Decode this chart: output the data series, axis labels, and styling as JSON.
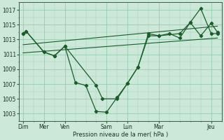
{
  "title": "Pression niveau de la mer( hPa )",
  "bg_color": "#cce8d8",
  "grid_color": "#8ec4a8",
  "line_color": "#1a5c2a",
  "x_ticks_labels": [
    "Dim",
    "Mer",
    "Ven",
    "Sam",
    "Lun",
    "Mar",
    "Jeu"
  ],
  "x_ticks_pos": [
    0,
    1,
    2,
    4,
    5,
    6.5,
    9
  ],
  "yticks": [
    1003,
    1005,
    1007,
    1009,
    1011,
    1013,
    1015,
    1017
  ],
  "ylim": [
    1002.0,
    1018.0
  ],
  "xlim": [
    -0.2,
    9.5
  ],
  "line1_x": [
    0,
    0.15,
    1.0,
    1.5,
    2.0,
    2.5,
    3.0,
    3.5,
    4.0,
    4.5,
    5.0,
    5.5,
    6.0,
    6.5,
    7.0,
    7.5,
    8.0,
    8.5,
    9.0,
    9.3
  ],
  "line1_y": [
    1013.8,
    1014.1,
    1011.3,
    1010.8,
    1012.1,
    1007.2,
    1006.8,
    1003.3,
    1003.2,
    1005.2,
    1007.1,
    1009.3,
    1013.5,
    1013.5,
    1013.8,
    1013.2,
    1015.3,
    1017.2,
    1013.8,
    1013.8
  ],
  "line2_x": [
    0,
    0.15,
    1.0,
    1.5,
    2.0,
    3.5,
    3.8,
    4.5,
    5.0,
    5.5,
    6.0,
    6.5,
    7.5,
    8.0,
    8.5,
    9.0,
    9.3
  ],
  "line2_y": [
    1013.8,
    1014.1,
    1011.3,
    1010.8,
    1012.1,
    1006.8,
    1005.0,
    1005.0,
    1007.1,
    1009.3,
    1013.8,
    1013.5,
    1013.8,
    1015.3,
    1013.5,
    1015.2,
    1014.0
  ],
  "trend1_x": [
    0,
    9.3
  ],
  "trend1_y": [
    1011.2,
    1013.2
  ],
  "trend2_x": [
    0,
    9.3
  ],
  "trend2_y": [
    1012.3,
    1014.8
  ]
}
